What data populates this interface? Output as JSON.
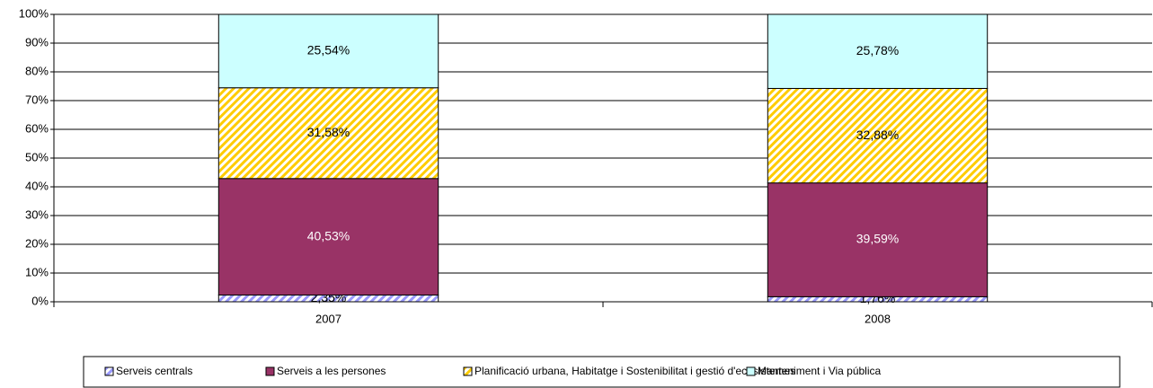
{
  "chart_data": {
    "type": "stacked_bar",
    "categories": [
      "2007",
      "2008"
    ],
    "series": [
      {
        "name": "Serveis centrals",
        "color": "#9999ff",
        "pattern": "diagonal",
        "values": [
          2.35,
          1.76
        ],
        "value_labels": [
          "2,35%",
          "1,76%"
        ]
      },
      {
        "name": "Serveis a les persones",
        "color": "#993366",
        "values": [
          40.53,
          39.59
        ],
        "value_labels": [
          "40,53%",
          "39,59%"
        ]
      },
      {
        "name": "Planificació urbana, Habitatge i Sostenibilitat i gestió d'ecosistemes",
        "color": "#ffcc00",
        "pattern": "diagonal",
        "values": [
          31.58,
          32.88
        ],
        "value_labels": [
          "31,58%",
          "32,88%"
        ]
      },
      {
        "name": "Manteniment i Via pública",
        "color": "#ccffff",
        "values": [
          25.54,
          25.78
        ],
        "value_labels": [
          "25,54%",
          "25,78%"
        ]
      }
    ],
    "ylim": [
      0,
      100
    ],
    "yticks": [
      {
        "value": 0,
        "label": "0%"
      },
      {
        "value": 10,
        "label": "10%"
      },
      {
        "value": 20,
        "label": "20%"
      },
      {
        "value": 30,
        "label": "30%"
      },
      {
        "value": 40,
        "label": "40%"
      },
      {
        "value": 50,
        "label": "50%"
      },
      {
        "value": 60,
        "label": "60%"
      },
      {
        "value": 70,
        "label": "70%"
      },
      {
        "value": 80,
        "label": "80%"
      },
      {
        "value": 90,
        "label": "90%"
      },
      {
        "value": 100,
        "label": "100%"
      }
    ],
    "grid": true,
    "legend": "bottom"
  }
}
